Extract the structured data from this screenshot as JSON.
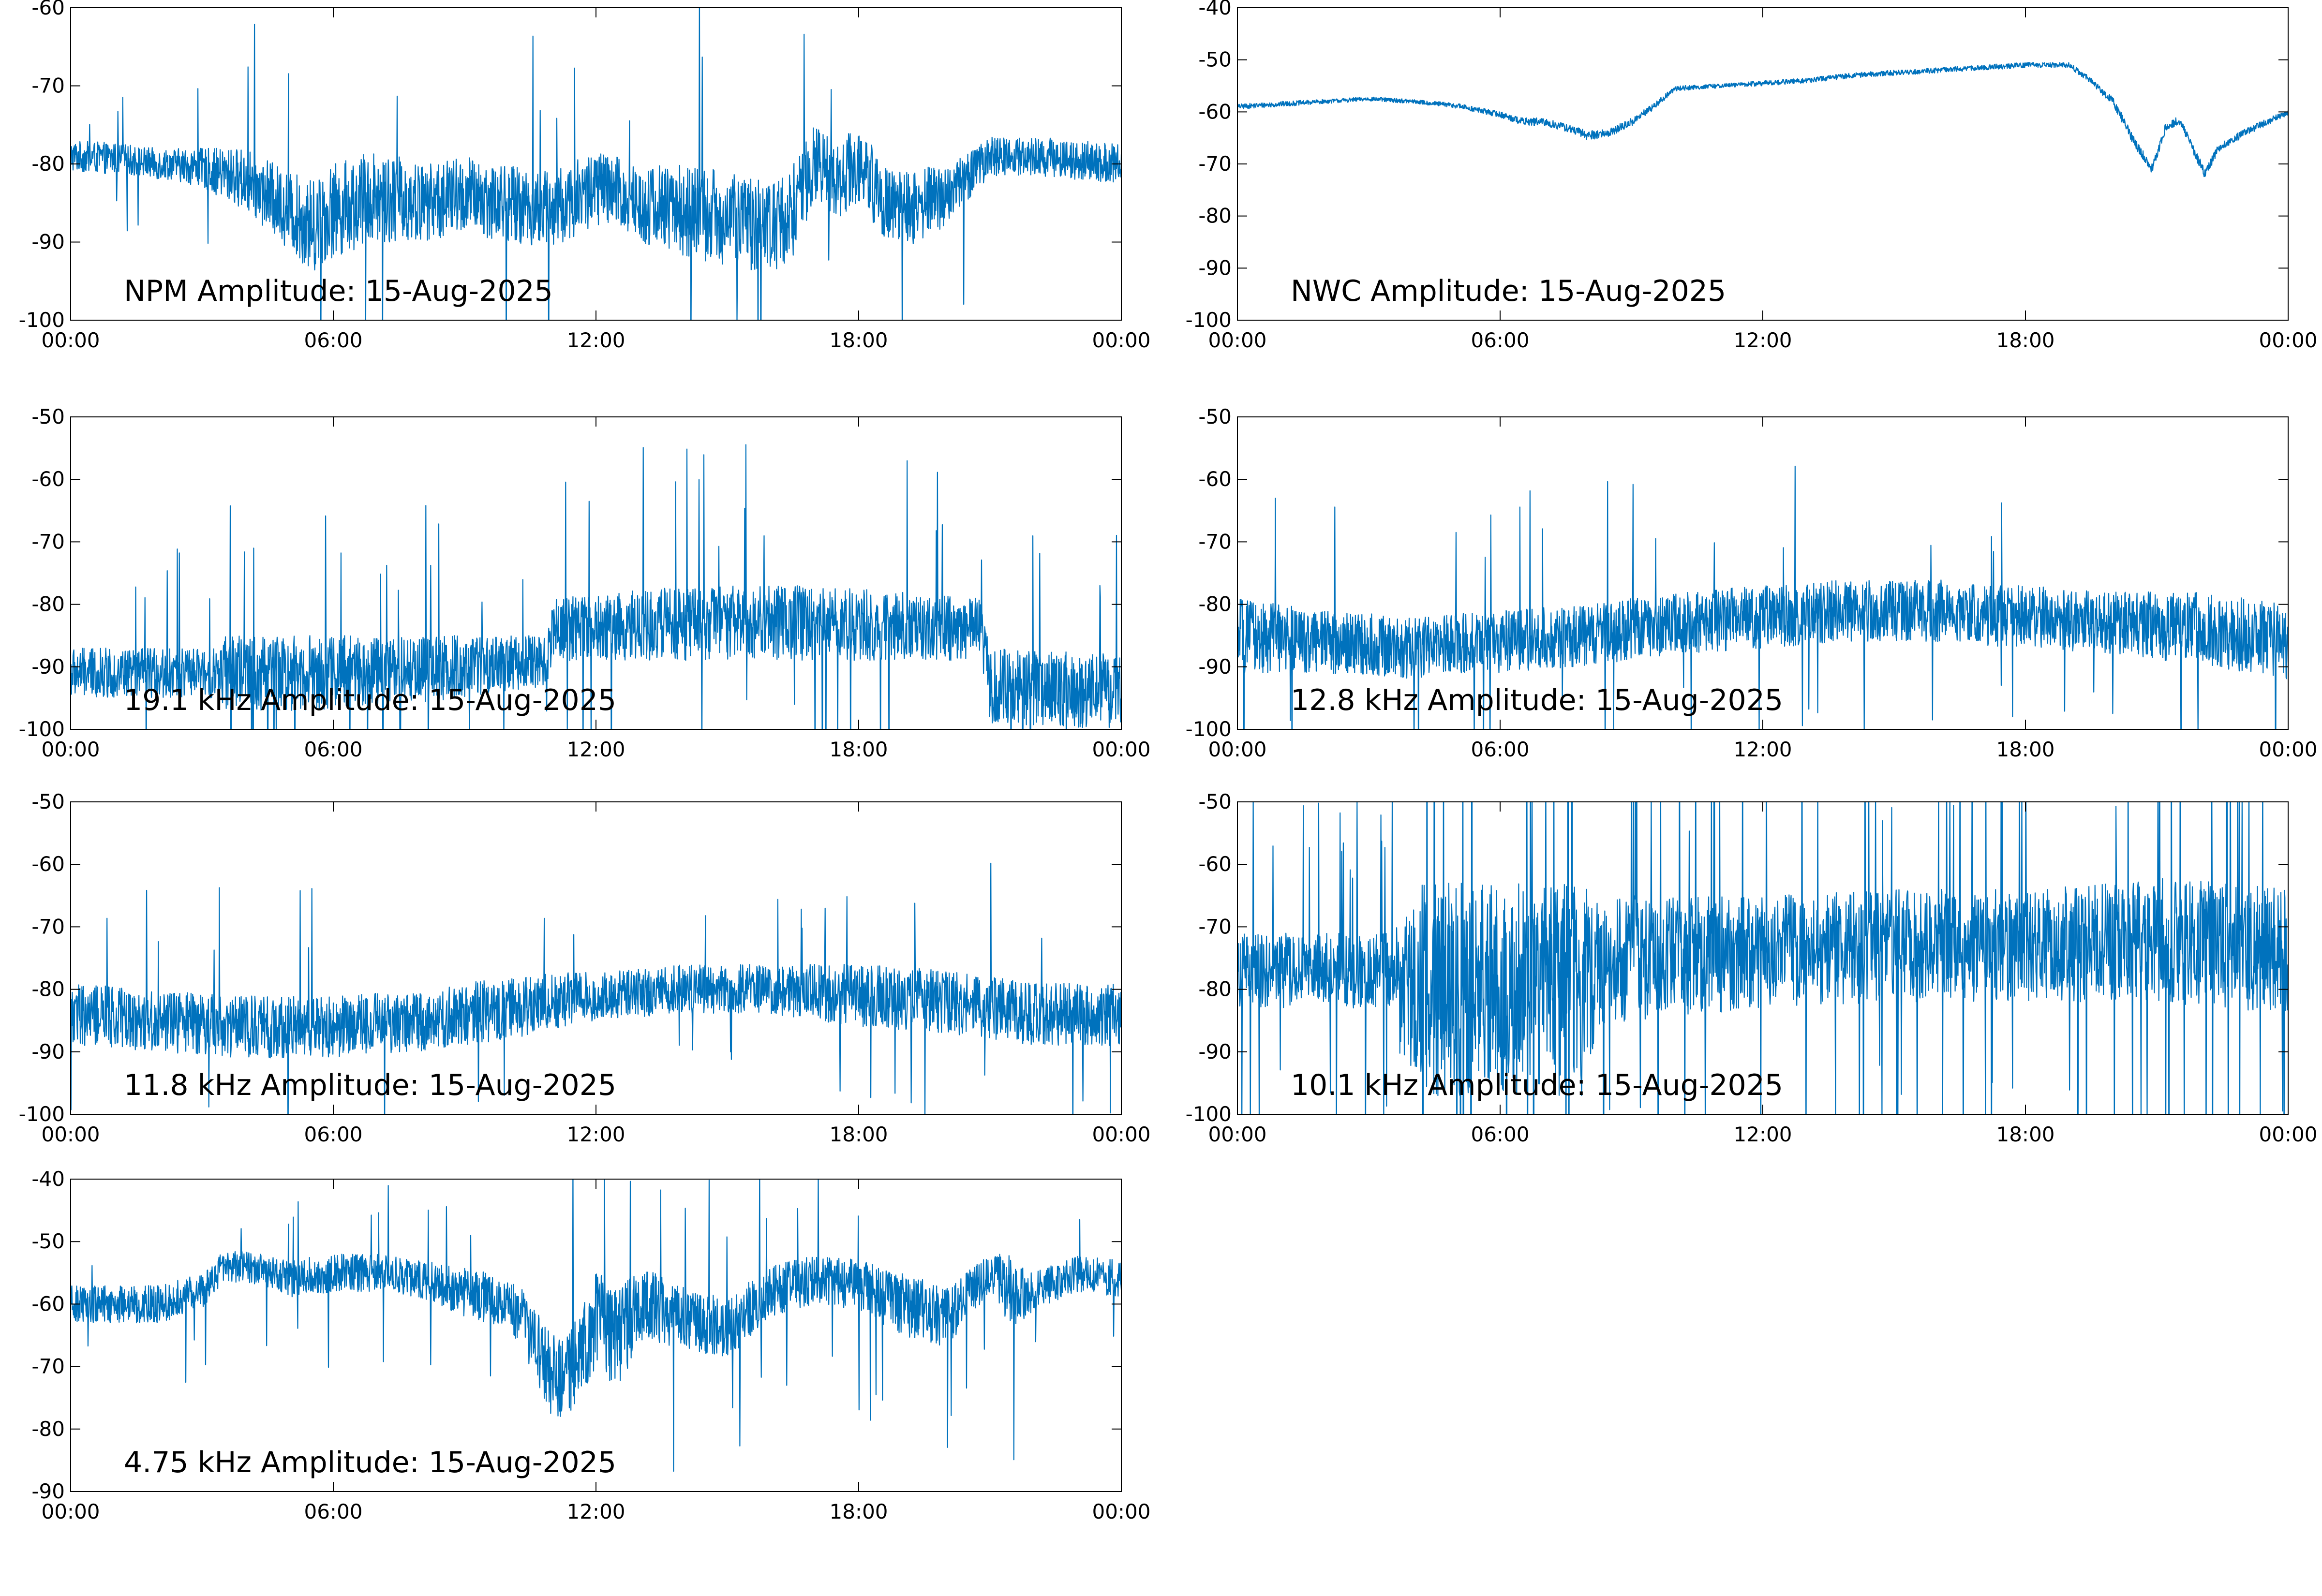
{
  "figure": {
    "line_color": "#0072BD",
    "background": "#ffffff",
    "grid": false,
    "legend": "none"
  },
  "chart_data": [
    {
      "type": "line",
      "title": "NPM Amplitude: 15-Aug-2025",
      "xlabel": "",
      "ylabel": "",
      "xlim": [
        "00:00",
        "00:00 (+1 day)"
      ],
      "x_ticks": [
        "00:00",
        "06:00",
        "12:00",
        "18:00",
        "00:00"
      ],
      "ylim": [
        -100,
        -60
      ],
      "y_ticks": [
        "-100",
        "-90",
        "-80",
        "-70",
        "-60"
      ],
      "x_hours": [
        0,
        1,
        2,
        2.3,
        3,
        4,
        5,
        5.5,
        6,
        7,
        8,
        9,
        10,
        11,
        12,
        13,
        14,
        15,
        16,
        16.5,
        17,
        17.5,
        18,
        18.5,
        19,
        20,
        21,
        22,
        23,
        24
      ],
      "y_center": [
        -79,
        -79.3,
        -80,
        -80,
        -80.5,
        -82,
        -86,
        -88,
        -86,
        -84,
        -85,
        -84,
        -85,
        -86,
        -83,
        -85,
        -86,
        -87,
        -88,
        -86,
        -80,
        -82,
        -80,
        -84,
        -86,
        -84,
        -79,
        -79,
        -79.5,
        -80
      ],
      "noise_band": [
        2,
        2,
        2,
        2,
        2.5,
        4,
        5,
        6,
        6,
        6,
        5,
        5,
        5,
        5,
        5,
        5,
        6,
        6,
        6,
        6,
        5,
        5,
        5,
        5,
        5,
        4,
        2.5,
        2.5,
        2.5,
        2.5
      ],
      "spike_rate": 0.01
    },
    {
      "type": "line",
      "title": "NWC Amplitude: 15-Aug-2025",
      "xlabel": "",
      "ylabel": "",
      "xlim": [
        "00:00",
        "00:00 (+1 day)"
      ],
      "x_ticks": [
        "00:00",
        "06:00",
        "12:00",
        "18:00",
        "00:00"
      ],
      "ylim": [
        -100,
        -40
      ],
      "y_ticks": [
        "-100",
        "-90",
        "-80",
        "-70",
        "-60",
        "-50",
        "-40"
      ],
      "x_hours": [
        0,
        1,
        2,
        3,
        4,
        5,
        6,
        6.5,
        7,
        7.5,
        8,
        8.5,
        9,
        9.5,
        10,
        11,
        12,
        13,
        14,
        15,
        16,
        17,
        18,
        19,
        19.5,
        20,
        20.5,
        20.9,
        21.2,
        21.5,
        21.8,
        22.1,
        22.4,
        23,
        24
      ],
      "y_center": [
        -59,
        -58.5,
        -58,
        -57.5,
        -58,
        -58.8,
        -60.5,
        -61.8,
        -62,
        -63,
        -64.5,
        -64,
        -62,
        -59,
        -55.5,
        -55,
        -54.5,
        -54,
        -53,
        -52.5,
        -52,
        -51.5,
        -51,
        -51,
        -54,
        -58,
        -66,
        -71,
        -63,
        -61.5,
        -66.5,
        -72,
        -67,
        -64,
        -60
      ],
      "noise_band": [
        0.5,
        0.5,
        0.4,
        0.4,
        0.4,
        0.5,
        0.6,
        0.7,
        0.8,
        0.8,
        0.9,
        0.8,
        0.8,
        0.6,
        0.5,
        0.4,
        0.5,
        0.5,
        0.5,
        0.5,
        0.5,
        0.5,
        0.5,
        0.5,
        0.6,
        0.8,
        1.0,
        1.0,
        0.8,
        0.8,
        0.9,
        1.0,
        0.8,
        0.7,
        0.6
      ],
      "spike_rate": 0
    },
    {
      "type": "line",
      "title": "19.1 kHz Amplitude: 15-Aug-2025",
      "xlabel": "",
      "ylabel": "",
      "xlim": [
        "00:00",
        "00:00 (+1 day)"
      ],
      "x_ticks": [
        "00:00",
        "06:00",
        "12:00",
        "18:00",
        "00:00"
      ],
      "ylim": [
        -100,
        -50
      ],
      "y_ticks": [
        "-100",
        "-90",
        "-80",
        "-70",
        "-60",
        "-50"
      ],
      "x_hours": [
        0,
        3.4,
        3.5,
        6,
        9,
        10.9,
        11,
        14,
        17,
        20.8,
        21,
        24
      ],
      "y_center": [
        -91,
        -91,
        -91,
        -91,
        -90,
        -89,
        -84,
        -83,
        -83,
        -84,
        -93,
        -94
      ],
      "noise_band": [
        4,
        4,
        6,
        6,
        5,
        4,
        5,
        6,
        6,
        5,
        6,
        6
      ],
      "spike_rate": 0.03
    },
    {
      "type": "line",
      "title": "12.8 kHz Amplitude: 15-Aug-2025",
      "xlabel": "",
      "ylabel": "",
      "xlim": [
        "00:00",
        "00:00 (+1 day)"
      ],
      "x_ticks": [
        "00:00",
        "06:00",
        "12:00",
        "18:00",
        "00:00"
      ],
      "ylim": [
        -100,
        -50
      ],
      "y_ticks": [
        "-100",
        "-90",
        "-80",
        "-70",
        "-60",
        "-50"
      ],
      "x_hours": [
        0,
        2,
        4,
        6,
        8,
        10,
        12,
        14,
        16,
        18,
        20,
        22,
        24
      ],
      "y_center": [
        -85,
        -86,
        -87,
        -86,
        -85,
        -83,
        -82,
        -81,
        -81,
        -82,
        -83,
        -84,
        -86
      ],
      "noise_band": [
        6,
        5,
        5,
        5,
        5,
        5,
        5,
        5,
        5,
        5,
        5,
        6,
        6
      ],
      "spike_rate": 0.015
    },
    {
      "type": "line",
      "title": "11.8 kHz Amplitude: 15-Aug-2025",
      "xlabel": "",
      "ylabel": "",
      "xlim": [
        "00:00",
        "00:00 (+1 day)"
      ],
      "x_ticks": [
        "00:00",
        "06:00",
        "12:00",
        "18:00",
        "00:00"
      ],
      "ylim": [
        -100,
        -50
      ],
      "y_ticks": [
        "-100",
        "-90",
        "-80",
        "-70",
        "-60",
        "-50"
      ],
      "x_hours": [
        0,
        2,
        4,
        6,
        8,
        10,
        12,
        14,
        16,
        18,
        20,
        22,
        24
      ],
      "y_center": [
        -84,
        -85,
        -86,
        -86,
        -85,
        -83,
        -81,
        -80,
        -80,
        -81,
        -82,
        -84,
        -84
      ],
      "noise_band": [
        5,
        5,
        5,
        5,
        5,
        5,
        4,
        4,
        4,
        5,
        5,
        5,
        5
      ],
      "spike_rate": 0.015
    },
    {
      "type": "line",
      "title": "10.1 kHz Amplitude: 15-Aug-2025",
      "xlabel": "",
      "ylabel": "",
      "xlim": [
        "00:00",
        "00:00 (+1 day)"
      ],
      "x_ticks": [
        "00:00",
        "06:00",
        "12:00",
        "18:00",
        "00:00"
      ],
      "ylim": [
        -100,
        -50
      ],
      "y_ticks": [
        "-100",
        "-90",
        "-80",
        "-70",
        "-60",
        "-50"
      ],
      "x_hours": [
        0,
        3.6,
        3.7,
        4.2,
        8,
        8.2,
        9,
        12,
        15,
        18,
        21,
        24
      ],
      "y_center": [
        -77,
        -77,
        -80,
        -80,
        -80,
        -76,
        -75,
        -74,
        -73,
        -73,
        -72,
        -74
      ],
      "noise_band": [
        6,
        6,
        12,
        17,
        17,
        10,
        10,
        9,
        9,
        9,
        10,
        10
      ],
      "spike_rate": 0.05
    },
    {
      "type": "line",
      "title": "4.75 kHz Amplitude: 15-Aug-2025",
      "xlabel": "",
      "ylabel": "",
      "xlim": [
        "00:00",
        "00:00 (+1 day)"
      ],
      "x_ticks": [
        "00:00",
        "06:00",
        "12:00",
        "18:00",
        "00:00"
      ],
      "ylim": [
        -90,
        -40
      ],
      "y_ticks": [
        "-90",
        "-80",
        "-70",
        "-60",
        "-50",
        "-40"
      ],
      "x_hours": [
        0,
        1,
        2,
        3,
        3.5,
        4,
        5,
        6,
        7,
        8,
        9,
        10,
        10.5,
        11,
        11.5,
        12,
        12.5,
        13,
        14,
        15,
        16,
        17,
        18,
        19,
        20,
        21,
        21.5,
        22,
        23,
        24
      ],
      "y_center": [
        -60,
        -60,
        -60,
        -58,
        -54,
        -54,
        -56,
        -55,
        -55,
        -56,
        -58,
        -60,
        -64,
        -72,
        -70,
        -62,
        -66,
        -60,
        -62,
        -64,
        -58,
        -56,
        -57,
        -60,
        -62,
        -55,
        -58,
        -58,
        -55,
        -56
      ],
      "noise_band": [
        3,
        3,
        3,
        3,
        2.5,
        2.5,
        3,
        3,
        3,
        3,
        4,
        4,
        6,
        7,
        7,
        8,
        8,
        6,
        5,
        5,
        4,
        4,
        4,
        5,
        5,
        3,
        6,
        3,
        3,
        3
      ],
      "spike_rate": 0.02
    }
  ]
}
